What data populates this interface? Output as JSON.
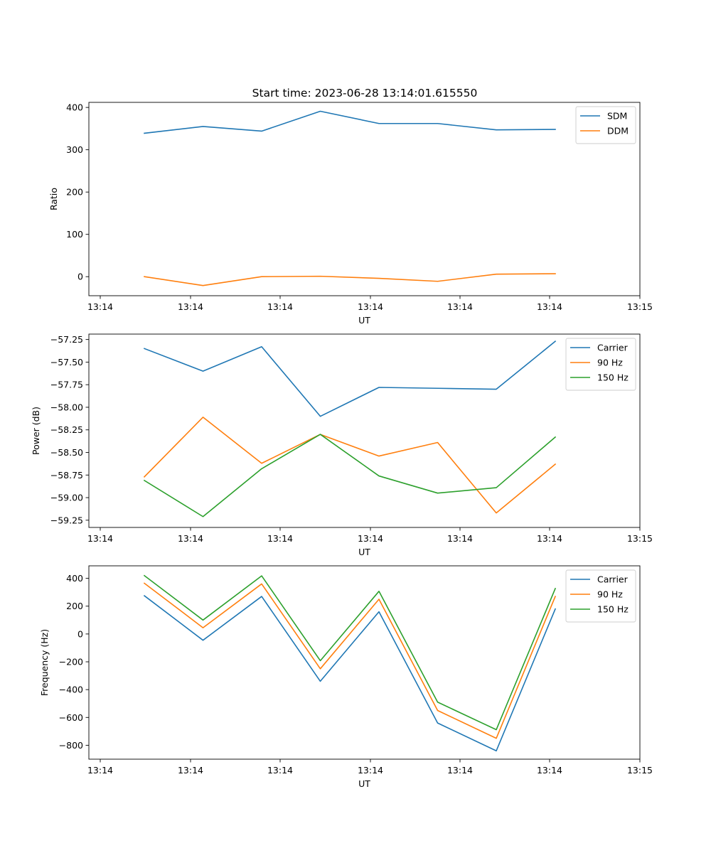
{
  "title": "Start time: 2023-06-28 13:14:01.615550",
  "x_tick_labels": [
    "13:14",
    "13:14",
    "13:14",
    "13:14",
    "13:14",
    "13:14",
    "13:14",
    "13:15"
  ],
  "chart_data": [
    {
      "type": "line",
      "xlabel": "UT",
      "ylabel": "Ratio",
      "ylim": [
        -45,
        412
      ],
      "yticks": [
        0,
        100,
        200,
        300,
        400
      ],
      "ytick_labels": [
        "0",
        "100",
        "200",
        "300",
        "400"
      ],
      "legend_position": "top-right",
      "grid": false,
      "series": [
        {
          "name": "SDM",
          "color": "#1f77b4",
          "values": [
            339,
            355,
            344,
            391,
            362,
            362,
            347,
            348
          ]
        },
        {
          "name": "DDM",
          "color": "#ff7f0e",
          "values": [
            0,
            -21,
            0,
            1,
            -4,
            -11,
            6,
            7
          ]
        }
      ]
    },
    {
      "type": "line",
      "xlabel": "UT",
      "ylabel": "Power (dB)",
      "ylim": [
        -59.33,
        -57.19
      ],
      "yticks": [
        -59.25,
        -59.0,
        -58.75,
        -58.5,
        -58.25,
        -58.0,
        -57.75,
        -57.5,
        -57.25
      ],
      "ytick_labels": [
        "−59.25",
        "−59.00",
        "−58.75",
        "−58.50",
        "−58.25",
        "−58.00",
        "−57.75",
        "−57.50",
        "−57.25"
      ],
      "legend_position": "top-right",
      "grid": false,
      "series": [
        {
          "name": "Carrier",
          "color": "#1f77b4",
          "values": [
            -57.35,
            -57.6,
            -57.33,
            -58.1,
            -57.78,
            -57.79,
            -57.8,
            -57.27
          ]
        },
        {
          "name": "90 Hz",
          "color": "#ff7f0e",
          "values": [
            -58.77,
            -58.11,
            -58.62,
            -58.3,
            -58.54,
            -58.39,
            -59.17,
            -58.63
          ]
        },
        {
          "name": "150 Hz",
          "color": "#2ca02c",
          "values": [
            -58.81,
            -59.21,
            -58.68,
            -58.3,
            -58.76,
            -58.95,
            -58.89,
            -58.33
          ]
        }
      ]
    },
    {
      "type": "line",
      "xlabel": "UT",
      "ylabel": "Frequency (Hz)",
      "ylim": [
        -900,
        490
      ],
      "yticks": [
        -800,
        -600,
        -400,
        -200,
        0,
        200,
        400
      ],
      "ytick_labels": [
        "−800",
        "−600",
        "−400",
        "−200",
        "0",
        "200",
        "400"
      ],
      "legend_position": "top-right",
      "grid": false,
      "series": [
        {
          "name": "Carrier",
          "color": "#1f77b4",
          "values": [
            275,
            -45,
            270,
            -340,
            160,
            -640,
            -840,
            180
          ]
        },
        {
          "name": "90 Hz",
          "color": "#ff7f0e",
          "values": [
            365,
            45,
            360,
            -250,
            250,
            -550,
            -750,
            270
          ]
        },
        {
          "name": "150 Hz",
          "color": "#2ca02c",
          "values": [
            420,
            100,
            418,
            -192,
            307,
            -490,
            -688,
            327
          ]
        }
      ]
    }
  ]
}
